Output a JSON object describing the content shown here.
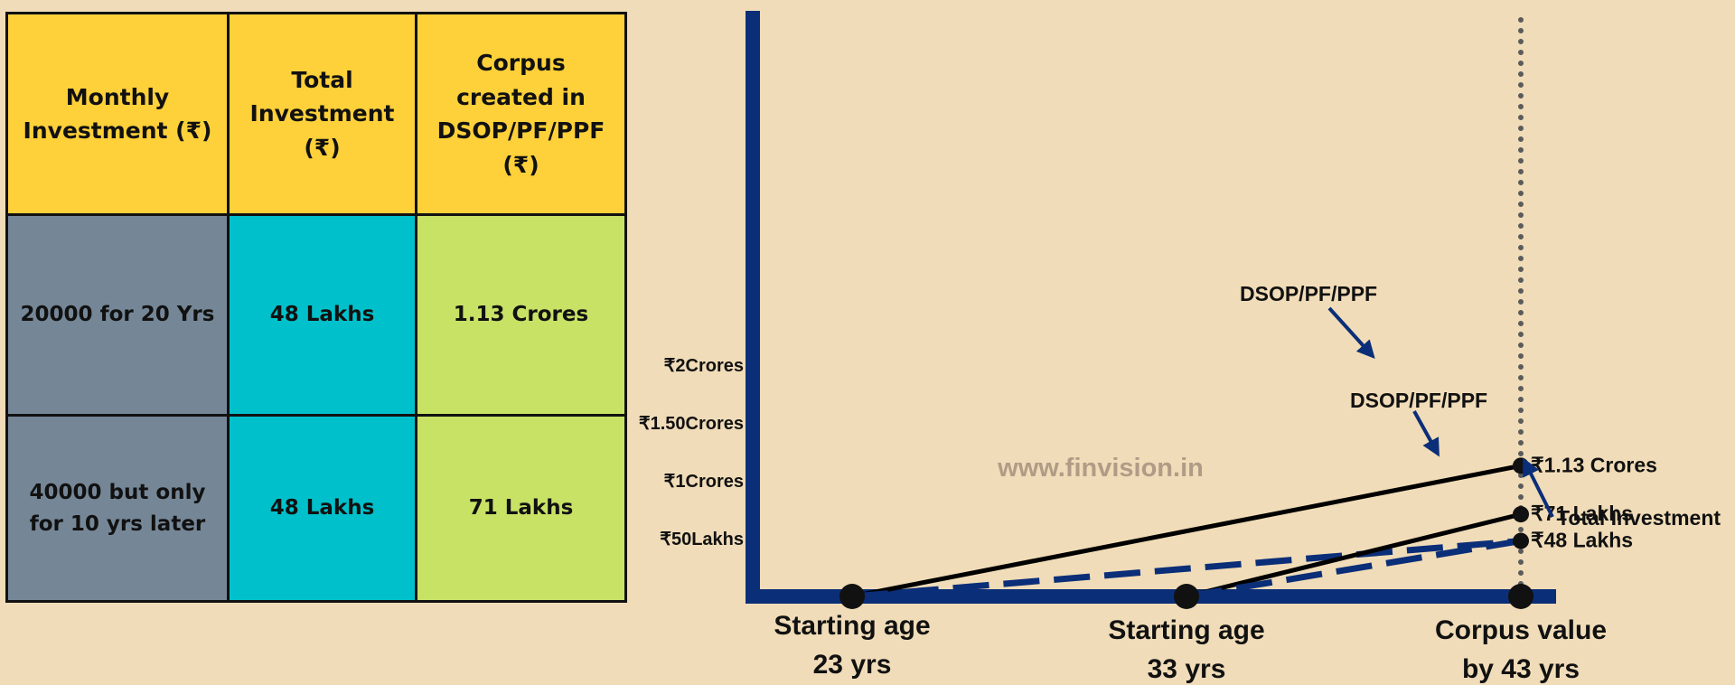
{
  "table": {
    "headers": [
      "Monthly\nInvestment (₹)",
      "Total\nInvestment\n(₹)",
      "Corpus\ncreated in\nDSOP/PF/PPF\n(₹)"
    ],
    "rows": [
      [
        "20000 for 20 Yrs",
        "48 Lakhs",
        "1.13 Crores"
      ],
      [
        "40000 but only\nfor 10 yrs later",
        "48 Lakhs",
        "71 Lakhs"
      ]
    ]
  },
  "colors": {
    "header": "#fed039",
    "col1": "#758797",
    "col2": "#00c1cb",
    "col3": "#c8e266",
    "axis": "#0b2e78",
    "background": "#f0dcb8"
  },
  "chart_data": {
    "type": "line",
    "y_ticks": [
      {
        "label": "₹2Crores",
        "value": 200
      },
      {
        "label": "₹1.50Crores",
        "value": 150
      },
      {
        "label": "₹1Crores",
        "value": 100
      },
      {
        "label": "₹50Lakhs",
        "value": 50
      }
    ],
    "ylim": [
      0,
      200
    ],
    "x_points": [
      {
        "age": 23,
        "label": "Starting age\n23 yrs"
      },
      {
        "age": 33,
        "label": "Starting age\n33 yrs"
      },
      {
        "age": 43,
        "label": "Corpus value\nby 43 yrs"
      }
    ],
    "xlim": [
      20,
      43
    ],
    "series": [
      {
        "name": "DSOP/PF/PPF",
        "style": "solid",
        "points": [
          {
            "age": 23,
            "value": 0
          },
          {
            "age": 43,
            "value": 113
          }
        ]
      },
      {
        "name": "Total Investment",
        "style": "dashed",
        "points": [
          {
            "age": 23,
            "value": 0
          },
          {
            "age": 43,
            "value": 48
          }
        ]
      },
      {
        "name": "DSOP/PF/PPF",
        "style": "solid",
        "points": [
          {
            "age": 33,
            "value": 0
          },
          {
            "age": 43,
            "value": 71
          }
        ]
      },
      {
        "name": "Total Investment",
        "style": "dashed",
        "points": [
          {
            "age": 33,
            "value": 0
          },
          {
            "age": 43,
            "value": 48
          }
        ]
      }
    ],
    "end_labels": [
      {
        "label": "₹1.13 Crores",
        "value": 113
      },
      {
        "label": "₹71 Lakhs",
        "value": 71
      },
      {
        "label": "₹48 Lakhs",
        "value": 48
      }
    ],
    "annotations": {
      "dsop_upper": "DSOP/PF/PPF",
      "dsop_lower": "DSOP/PF/PPF",
      "total_investment": "Total Investment"
    },
    "watermark": "www.finvision.in"
  }
}
